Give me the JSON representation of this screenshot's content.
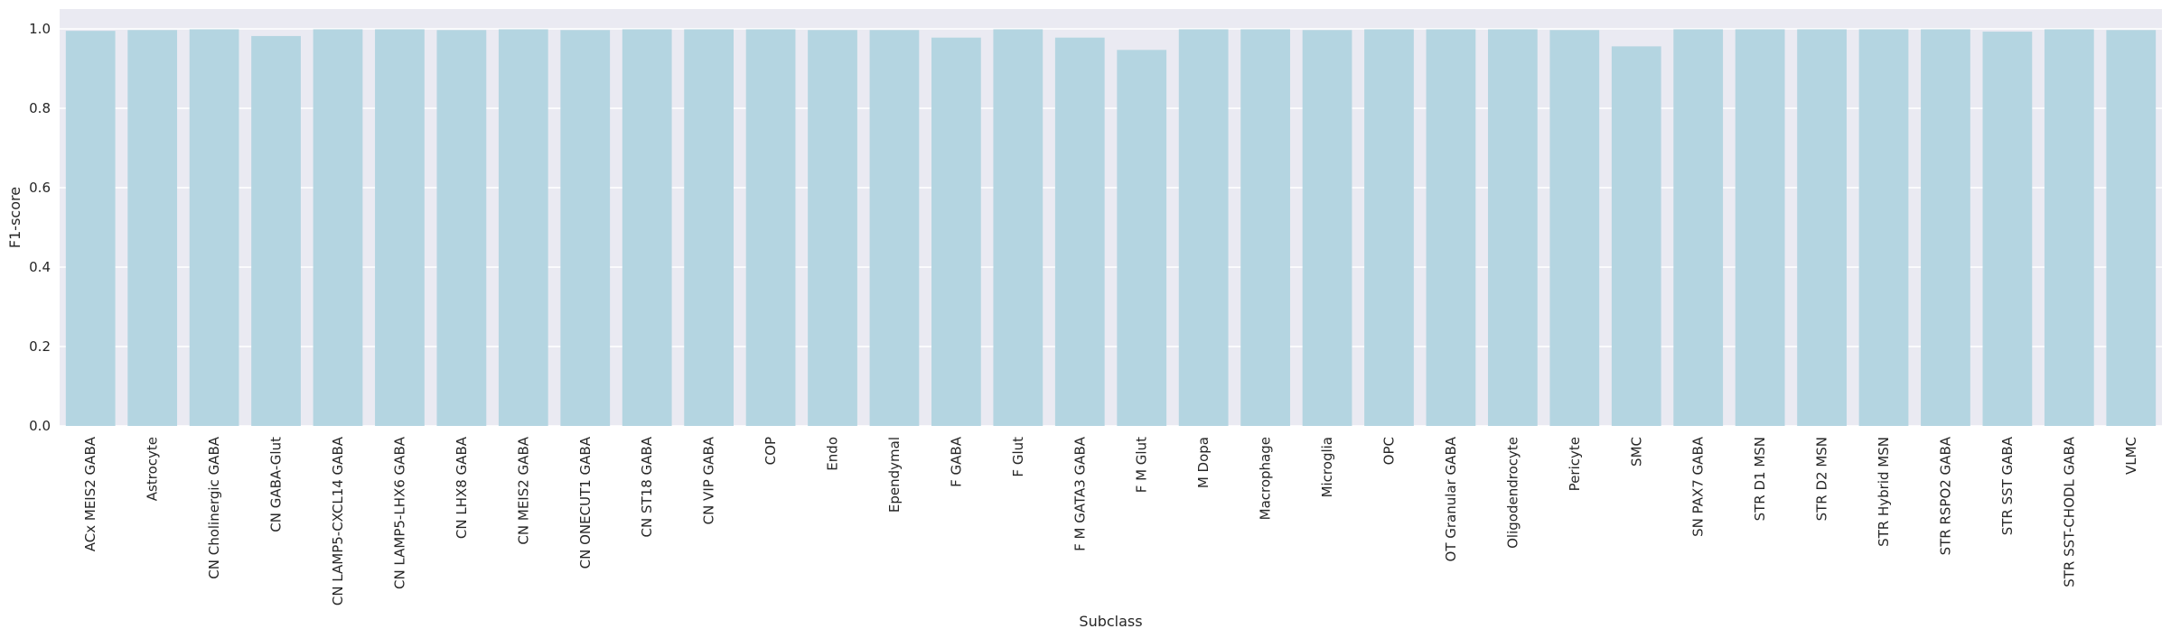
{
  "chart_data": {
    "type": "bar",
    "title": "",
    "xlabel": "Subclass",
    "ylabel": "F1-score",
    "ylim": [
      0,
      1.0
    ],
    "yticks": [
      "0.0",
      "0.2",
      "0.4",
      "0.6",
      "0.8",
      "1.0"
    ],
    "grid": true,
    "colors": {
      "bar": "#b4d5e1",
      "background": "#eaeaf2",
      "grid": "#ffffff",
      "text": "#262626"
    },
    "categories": [
      "ACx MEIS2 GABA",
      "Astrocyte",
      "CN Cholinergic GABA",
      "CN GABA-Glut",
      "CN LAMP5-CXCL14 GABA",
      "CN LAMP5-LHX6 GABA",
      "CN LHX8 GABA",
      "CN MEIS2 GABA",
      "CN ONECUT1 GABA",
      "CN ST18 GABA",
      "CN VIP GABA",
      "COP",
      "Endo",
      "Ependymal",
      "F GABA",
      "F Glut",
      "F M GATA3 GABA",
      "F M Glut",
      "M Dopa",
      "Macrophage",
      "Microglia",
      "OPC",
      "OT Granular GABA",
      "Oligodendrocyte",
      "Pericyte",
      "SMC",
      "SN PAX7 GABA",
      "STR D1 MSN",
      "STR D2 MSN",
      "STR Hybrid MSN",
      "STR RSPO2 GABA",
      "STR SST GABA",
      "STR SST-CHODL GABA",
      "VLMC"
    ],
    "values": [
      0.995,
      0.997,
      0.999,
      0.982,
      0.999,
      0.999,
      0.997,
      0.999,
      0.997,
      0.999,
      0.999,
      0.999,
      0.997,
      0.997,
      0.978,
      0.999,
      0.978,
      0.947,
      0.999,
      0.999,
      0.997,
      0.999,
      0.999,
      0.999,
      0.997,
      0.956,
      0.999,
      0.999,
      0.999,
      0.999,
      0.999,
      0.993,
      0.999,
      0.997
    ]
  }
}
